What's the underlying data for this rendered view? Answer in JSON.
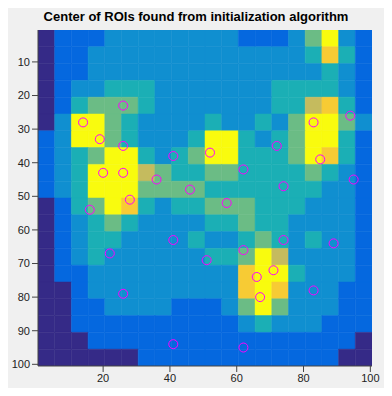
{
  "chart_data": {
    "type": "scatter",
    "title": "Center of ROIs found from initialization algorithm",
    "x": [
      26,
      14,
      19,
      26,
      20,
      26,
      28,
      16,
      22,
      26,
      36,
      41,
      46,
      52,
      62,
      57,
      41,
      51,
      62,
      66,
      71,
      67,
      41,
      62,
      72,
      74,
      74,
      83,
      85,
      94,
      95,
      89,
      83
    ],
    "y": [
      23,
      28,
      33,
      35,
      43,
      43,
      51,
      54,
      67,
      79,
      45,
      38,
      48,
      37,
      42,
      52,
      63,
      69,
      66,
      74,
      72,
      80,
      94,
      95,
      35,
      47,
      63,
      28,
      39,
      26,
      45,
      64,
      78
    ],
    "color": "#ff00ff",
    "marker": "circle",
    "grid": false,
    "xlim": [
      0.5,
      100.5
    ],
    "ylim": [
      0.5,
      100.5
    ],
    "xticks": [
      20,
      40,
      60,
      80,
      100
    ],
    "yticks": [
      10,
      20,
      30,
      40,
      50,
      60,
      70,
      80,
      90,
      100
    ],
    "heatmap": {
      "clim": [
        2,
        9
      ],
      "cells": [
        [
          2,
          3,
          3,
          3,
          4,
          4,
          4,
          4,
          4,
          4,
          4,
          4,
          3,
          3,
          3,
          4,
          6,
          9,
          4,
          3
        ],
        [
          2,
          3,
          3,
          4,
          4,
          4,
          4,
          4,
          4,
          4,
          4,
          4,
          4,
          4,
          4,
          4,
          5,
          8,
          5,
          3
        ],
        [
          2,
          3,
          3,
          4,
          4,
          4,
          4,
          4,
          4,
          4,
          4,
          4,
          4,
          4,
          4,
          4,
          4,
          5,
          4,
          3
        ],
        [
          2,
          3,
          4,
          4,
          5,
          5,
          5,
          4,
          4,
          4,
          4,
          4,
          4,
          4,
          5,
          5,
          5,
          5,
          4,
          3
        ],
        [
          2,
          3,
          5,
          6,
          6,
          6,
          5,
          4,
          4,
          4,
          4,
          4,
          4,
          4,
          5,
          5,
          7,
          8,
          5,
          3
        ],
        [
          2,
          4,
          9,
          9,
          6,
          5,
          4,
          4,
          4,
          4,
          5,
          4,
          4,
          5,
          4,
          6,
          9,
          9,
          6,
          4
        ],
        [
          3,
          4,
          9,
          9,
          6,
          5,
          4,
          4,
          4,
          5,
          9,
          9,
          5,
          4,
          5,
          6,
          9,
          9,
          5,
          3
        ],
        [
          3,
          4,
          5,
          6,
          9,
          9,
          5,
          4,
          5,
          6,
          9,
          9,
          5,
          5,
          5,
          6,
          9,
          8,
          5,
          3
        ],
        [
          3,
          4,
          5,
          9,
          9,
          9,
          7,
          6,
          5,
          5,
          6,
          6,
          5,
          5,
          5,
          5,
          6,
          5,
          4,
          3
        ],
        [
          3,
          4,
          5,
          9,
          9,
          9,
          6,
          6,
          6,
          6,
          5,
          5,
          5,
          5,
          5,
          5,
          5,
          4,
          4,
          3
        ],
        [
          2,
          3,
          5,
          6,
          9,
          8,
          5,
          4,
          5,
          5,
          6,
          6,
          6,
          5,
          5,
          5,
          4,
          4,
          4,
          3
        ],
        [
          2,
          3,
          4,
          5,
          6,
          5,
          4,
          4,
          4,
          4,
          5,
          5,
          6,
          5,
          5,
          4,
          4,
          4,
          4,
          3
        ],
        [
          2,
          3,
          4,
          5,
          5,
          4,
          4,
          4,
          4,
          5,
          4,
          4,
          5,
          6,
          5,
          4,
          5,
          4,
          4,
          3
        ],
        [
          2,
          3,
          4,
          5,
          4,
          4,
          4,
          4,
          4,
          4,
          5,
          5,
          6,
          9,
          7,
          4,
          4,
          4,
          4,
          3
        ],
        [
          2,
          3,
          3,
          4,
          4,
          4,
          4,
          4,
          4,
          4,
          4,
          4,
          8,
          9,
          9,
          5,
          4,
          4,
          4,
          3
        ],
        [
          2,
          2,
          3,
          4,
          4,
          4,
          4,
          4,
          4,
          4,
          4,
          4,
          8,
          9,
          8,
          4,
          4,
          4,
          3,
          3
        ],
        [
          2,
          2,
          3,
          3,
          4,
          4,
          4,
          4,
          3,
          3,
          3,
          4,
          6,
          9,
          6,
          4,
          4,
          4,
          3,
          3
        ],
        [
          2,
          2,
          3,
          3,
          3,
          3,
          3,
          3,
          3,
          3,
          3,
          3,
          4,
          5,
          4,
          4,
          4,
          3,
          3,
          3
        ],
        [
          2,
          2,
          2,
          3,
          3,
          3,
          3,
          3,
          3,
          3,
          3,
          3,
          3,
          3,
          3,
          3,
          3,
          3,
          3,
          2
        ],
        [
          2,
          2,
          2,
          2,
          2,
          2,
          3,
          3,
          3,
          3,
          3,
          3,
          3,
          3,
          3,
          3,
          3,
          3,
          2,
          2
        ]
      ]
    }
  }
}
